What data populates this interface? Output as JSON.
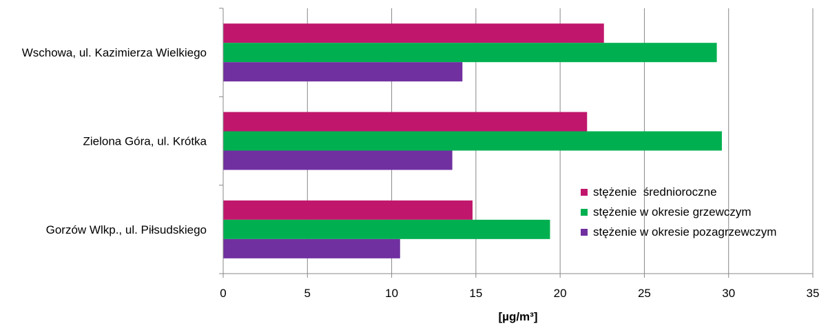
{
  "chart_data": {
    "type": "bar",
    "orientation": "horizontal",
    "categories": [
      "Wschowa, ul. Kazimierza Wielkiego",
      "Zielona Góra, ul. Krótka",
      "Gorzów Wlkp., ul. Piłsudskiego"
    ],
    "series": [
      {
        "name": "stężenie  średnioroczne",
        "color": "#C0176C",
        "values": [
          22.6,
          21.6,
          14.8
        ]
      },
      {
        "name": "stężenie w okresie grzewczym",
        "color": "#00B050",
        "values": [
          29.3,
          29.6,
          19.4
        ]
      },
      {
        "name": "stężenie w okresie pozagrzewczym",
        "color": "#7030A0",
        "values": [
          14.2,
          13.6,
          10.5
        ]
      }
    ],
    "xlim": [
      0,
      35
    ],
    "xticks": [
      0,
      5,
      10,
      15,
      20,
      25,
      30,
      35
    ],
    "xlabel": "[µg/m³]",
    "ylabel": "",
    "title": "",
    "grid": true,
    "legend_position": "bottom-right"
  }
}
